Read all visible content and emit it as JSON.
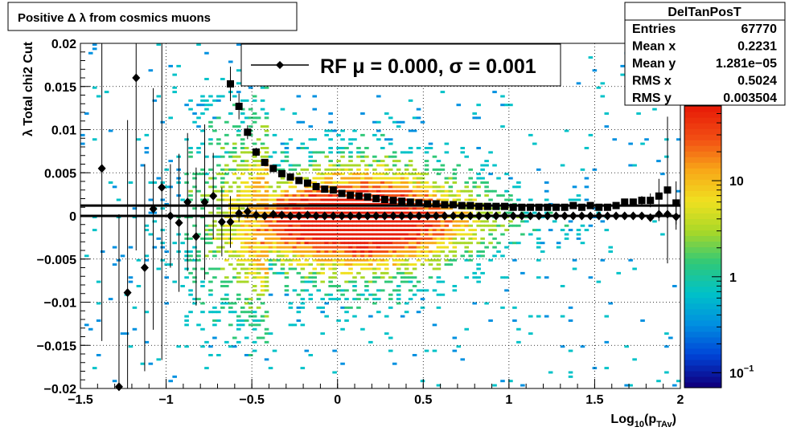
{
  "chart_data": {
    "type": "heatmap",
    "title": "Positive Δ λ from cosmics muons",
    "xlabel": "Log",
    "xlabel_sub": "10",
    "xlabel_paren_open": "(p",
    "xlabel_sub2": "TAv",
    "xlabel_paren_close": ")",
    "ylabel": "λ  Total chi2 Cut",
    "xlim": [
      -1.5,
      2.0
    ],
    "ylim": [
      -0.02,
      0.02
    ],
    "z_scale": "log",
    "zlim": [
      0.07,
      60
    ],
    "grid": true,
    "x_ticks": [
      {
        "value": -1.5,
        "label": "−1.5"
      },
      {
        "value": -1.0,
        "label": "−1"
      },
      {
        "value": -0.5,
        "label": "−0.5"
      },
      {
        "value": 0.0,
        "label": "0"
      },
      {
        "value": 0.5,
        "label": "0.5"
      },
      {
        "value": 1.0,
        "label": "1"
      },
      {
        "value": 1.5,
        "label": "1.5"
      },
      {
        "value": 2.0,
        "label": "2"
      }
    ],
    "y_ticks": [
      {
        "value": 0.02,
        "label": "0.02"
      },
      {
        "value": 0.015,
        "label": "0.015"
      },
      {
        "value": 0.01,
        "label": "0.01"
      },
      {
        "value": 0.005,
        "label": "0.005"
      },
      {
        "value": 0.0,
        "label": "0"
      },
      {
        "value": -0.005,
        "label": "−0.005"
      },
      {
        "value": -0.01,
        "label": "−0.01"
      },
      {
        "value": -0.015,
        "label": "−0.015"
      },
      {
        "value": -0.02,
        "label": "−0.02"
      }
    ],
    "z_ticks": [
      {
        "value": 10,
        "label": "10",
        "sup": ""
      },
      {
        "value": 1,
        "label": "1",
        "sup": ""
      },
      {
        "value": 0.1,
        "label": "10",
        "sup": "−1"
      }
    ],
    "colors": {
      "palette": [
        "#0f0080",
        "#0045d8",
        "#0090e0",
        "#00c2c8",
        "#30c878",
        "#a8d828",
        "#f0e020",
        "#f8a818",
        "#f25014",
        "#e81e08"
      ],
      "markers": "#000000",
      "axis": "#000000",
      "grid": "#000000"
    },
    "legend": {
      "position": "top-center",
      "label": "RF μ =  0.000, σ =   0.001"
    },
    "stats": {
      "title": "DelTanPosT",
      "rows": [
        {
          "name": "Entries",
          "value": "67770"
        },
        {
          "name": "Mean x",
          "value": "0.2231"
        },
        {
          "name": "Mean y",
          "value": "1.281e−05"
        },
        {
          "name": "RMS x",
          "value": "0.5024"
        },
        {
          "name": "RMS y",
          "value": "0.003504"
        }
      ]
    },
    "fit_lines": [
      {
        "name": "mean",
        "y": 0.0
      },
      {
        "name": "offset",
        "y": 0.0012
      }
    ],
    "series": [
      {
        "marker": "square",
        "x": [
          -0.625,
          -0.575,
          -0.525,
          -0.475,
          -0.425,
          -0.375,
          -0.325,
          -0.275,
          -0.225,
          -0.175,
          -0.125,
          -0.075,
          -0.025,
          0.025,
          0.075,
          0.125,
          0.175,
          0.225,
          0.275,
          0.325,
          0.375,
          0.425,
          0.475,
          0.525,
          0.575,
          0.625,
          0.675,
          0.725,
          0.775,
          0.825,
          0.875,
          0.925,
          0.975,
          1.025,
          1.075,
          1.125,
          1.175,
          1.225,
          1.275,
          1.325,
          1.375,
          1.425,
          1.475,
          1.525,
          1.575,
          1.625,
          1.675,
          1.725,
          1.775,
          1.825,
          1.875,
          1.925,
          1.975
        ],
        "y": [
          0.0153,
          0.0127,
          0.0097,
          0.0074,
          0.0062,
          0.0055,
          0.0049,
          0.0045,
          0.0041,
          0.0038,
          0.0034,
          0.0031,
          0.003,
          0.0026,
          0.0024,
          0.0023,
          0.0022,
          0.002,
          0.0019,
          0.0018,
          0.0017,
          0.0016,
          0.0015,
          0.0014,
          0.0014,
          0.0013,
          0.0013,
          0.0012,
          0.0012,
          0.0011,
          0.0011,
          0.0011,
          0.0011,
          0.001,
          0.001,
          0.001,
          0.001,
          0.001,
          0.001,
          0.001,
          0.0012,
          0.001,
          0.0012,
          0.001,
          0.001,
          0.0012,
          0.0016,
          0.0016,
          0.0018,
          0.0018,
          0.0023,
          0.003,
          0.0015
        ],
        "err": [
          0.002,
          0.0015,
          0.0008,
          0.0005,
          0.0004,
          0.0003,
          0.0003,
          0.0002,
          0.0002,
          0.0002,
          0.0002,
          0.0002,
          0.0002,
          0.0002,
          0.0001,
          0.0001,
          0.0001,
          0.0001,
          0.0001,
          0.0001,
          0.0001,
          0.0001,
          0.0001,
          0.0001,
          0.0001,
          0.0001,
          0.0001,
          0.0001,
          0.0001,
          0.0001,
          0.0001,
          0.0001,
          0.0001,
          0.0001,
          0.0001,
          0.0001,
          0.0001,
          0.0001,
          0.0001,
          0.0001,
          0.0001,
          0.0001,
          0.0002,
          0.0002,
          0.0002,
          0.0002,
          0.0003,
          0.0004,
          0.0005,
          0.0008,
          0.002,
          0.0085,
          0.0025
        ]
      },
      {
        "marker": "diamond",
        "x": [
          -1.375,
          -1.275,
          -1.225,
          -1.175,
          -1.125,
          -1.075,
          -1.025,
          -0.975,
          -0.925,
          -0.875,
          -0.825,
          -0.775,
          -0.725,
          -0.675,
          -0.625,
          -0.575,
          -0.525,
          -0.475,
          -0.425,
          -0.375,
          -0.325,
          -0.275,
          -0.225,
          -0.175,
          -0.125,
          -0.075,
          -0.025,
          0.025,
          0.075,
          0.125,
          0.175,
          0.225,
          0.275,
          0.325,
          0.375,
          0.425,
          0.475,
          0.525,
          0.575,
          0.625,
          0.675,
          0.725,
          0.775,
          0.825,
          0.875,
          0.925,
          0.975,
          1.025,
          1.075,
          1.125,
          1.175,
          1.225,
          1.275,
          1.325,
          1.375,
          1.425,
          1.475,
          1.525,
          1.575,
          1.625,
          1.675,
          1.725,
          1.775,
          1.825,
          1.875,
          1.925,
          1.975
        ],
        "y": [
          0.0055,
          -0.0198,
          -0.0089,
          0.016,
          -0.006,
          0.0008,
          0.0033,
          0.0,
          -0.0008,
          0.0016,
          -0.0024,
          0.0016,
          0.0023,
          -0.0007,
          -0.0007,
          0.0003,
          0.0005,
          0.0001,
          0.0,
          0.0002,
          0.0001,
          0.0,
          0.0,
          0.0001,
          0.0,
          0.0,
          0.0,
          0.0,
          0.0,
          0.0,
          0.0,
          0.0,
          0.0,
          0.0,
          0.0,
          0.0,
          0.0,
          0.0,
          0.0,
          0.0,
          0.0,
          0.0,
          0.0,
          0.0,
          0.0,
          0.0,
          0.0,
          0.0,
          0.0,
          0.0,
          0.0,
          0.0,
          0.0,
          0.0,
          0.0,
          0.0,
          0.0,
          0.0,
          0.0,
          0.0,
          0.0,
          0.0,
          0.0,
          -0.0002,
          0.0002,
          0.0002,
          -0.0001
        ],
        "err": [
          0.02,
          0.02,
          0.02,
          0.02,
          0.012,
          0.014,
          0.02,
          0.006,
          0.008,
          0.008,
          0.008,
          0.009,
          0.005,
          0.004,
          0.003,
          0.001,
          0.0008,
          0.0006,
          0.0004,
          0.0003,
          0.0003,
          0.0002,
          0.0002,
          0.0002,
          0.0002,
          0.0001,
          0.0001,
          0.0001,
          0.0001,
          0.0001,
          0.0001,
          0.0001,
          0.0001,
          0.0001,
          0.0001,
          0.0001,
          0.0001,
          0.0001,
          0.0001,
          0.0001,
          0.0001,
          0.0001,
          0.0001,
          0.0001,
          0.0001,
          0.0001,
          0.0001,
          0.0001,
          0.0001,
          0.0001,
          0.0001,
          0.0001,
          0.0001,
          0.0001,
          0.0001,
          0.0001,
          0.0001,
          0.0001,
          0.0001,
          0.0001,
          0.0002,
          0.0002,
          0.0003,
          0.0004,
          0.0008,
          0.0025,
          0.0015
        ]
      }
    ]
  }
}
